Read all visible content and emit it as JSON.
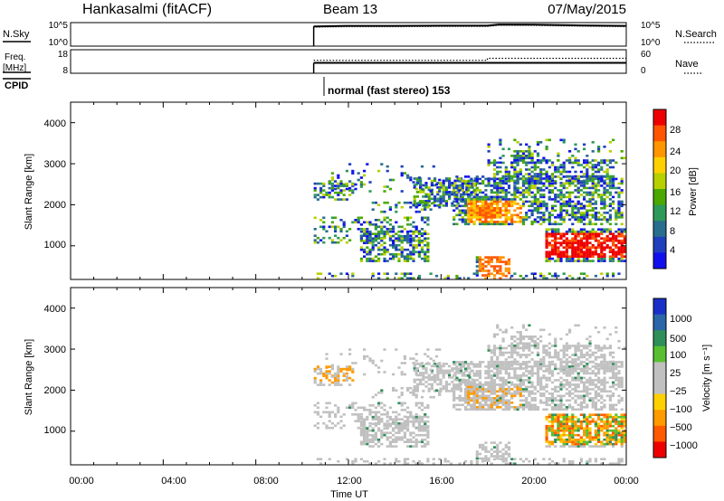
{
  "header": {
    "title": "Hankasalmi (fitACF)",
    "beam": "Beam 13",
    "date": "07/May/2015"
  },
  "summary": {
    "nsky_label": "N.Sky",
    "nsearch_label": "N.Search",
    "freq_label_line1": "Freq.",
    "freq_label_line2": "[MHz]",
    "nave_label": "Nave",
    "cpid_label": "CPID",
    "cpid_text": "normal (fast stereo) 153",
    "nsky_ticks": [
      "10^5",
      "10^0"
    ],
    "nsearch_ticks": [
      "10^5",
      "10^0"
    ],
    "freq_ticks": [
      "18",
      "8"
    ],
    "nave_ticks": [
      "60",
      "0"
    ]
  },
  "colorbars": {
    "power": {
      "label": "Power [dB]",
      "ticks": [
        "28",
        "24",
        "20",
        "16",
        "12",
        "8",
        "4"
      ],
      "colors": [
        "#ee0000",
        "#ff5500",
        "#ff9500",
        "#ffd000",
        "#b7d000",
        "#4aa800",
        "#2e9a5a",
        "#2a6e8e",
        "#1f3fbf",
        "#1010ee"
      ]
    },
    "velocity": {
      "label": "Velocity [m s⁻¹]",
      "ticks": [
        "1000",
        "500",
        "100",
        "25",
        "−25",
        "−100",
        "−500",
        "−1000"
      ],
      "colors": [
        "#1a2fc8",
        "#2a66a8",
        "#2f8f5a",
        "#58c030",
        "#c0c0c0",
        "#c0c0c0",
        "#ffd000",
        "#ff9a00",
        "#ff5a00",
        "#ee0000"
      ]
    }
  },
  "chart_data": [
    {
      "type": "line",
      "name": "N.Sky / N.Search",
      "xlabel": "",
      "ylabel": "N.Sky",
      "x_hours": [
        10.5,
        12,
        14,
        16,
        18,
        18.5,
        20,
        22,
        24
      ],
      "values": [
        4.2,
        4.3,
        4.3,
        4.35,
        4.35,
        4.6,
        4.55,
        4.4,
        4.3
      ],
      "ylim": [
        0,
        5
      ]
    },
    {
      "type": "line",
      "name": "Freq. / Nave",
      "ylabel": "Freq. [MHz]",
      "x_hours": [
        10.5,
        18,
        24
      ],
      "freq_values": [
        12.4,
        12.4,
        12.4
      ],
      "nave_values": [
        33,
        38,
        38
      ],
      "ylim": [
        8,
        18
      ]
    },
    {
      "type": "heatmap",
      "name": "Power",
      "xlabel": "",
      "ylabel": "Slant Range [km]",
      "xlim": [
        0,
        24
      ],
      "ylim": [
        180,
        4500
      ],
      "y_ticks": [
        "1000",
        "2000",
        "3000",
        "4000"
      ],
      "data_start_hour": 10.5
    },
    {
      "type": "heatmap",
      "name": "Velocity",
      "xlabel": "Time UT",
      "ylabel": "Slant Range [km]",
      "xlim": [
        0,
        24
      ],
      "ylim": [
        180,
        4500
      ],
      "x_ticks": [
        "00:00",
        "04:00",
        "08:00",
        "12:00",
        "16:00",
        "20:00",
        "00:00"
      ],
      "y_ticks": [
        "1000",
        "2000",
        "3000",
        "4000"
      ],
      "data_start_hour": 10.5
    }
  ]
}
